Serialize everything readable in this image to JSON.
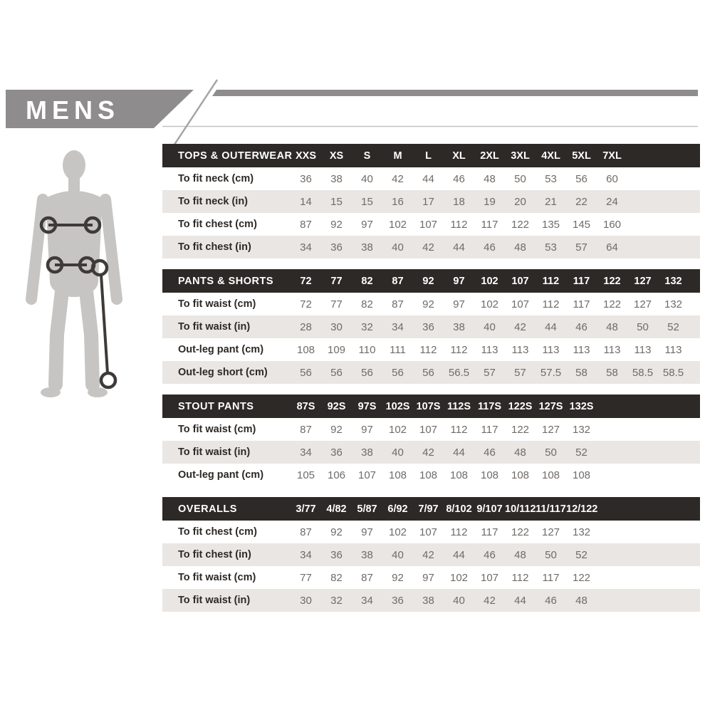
{
  "banner": {
    "label": "MENS",
    "band_color": "#8e8c8c",
    "text_color": "#ffffff"
  },
  "figure": {
    "description": "male body silhouette",
    "silhouette_color": "#c7c5c3",
    "marker_color": "#3e3a37",
    "markers": [
      "chest-measure",
      "waist-measure",
      "out-leg-measure"
    ]
  },
  "colors": {
    "table_header_bg": "#2d2926",
    "table_header_text": "#ffffff",
    "row_stripe": "#e9e6e3",
    "row_label_text": "#2d2926",
    "row_value_text": "#6f6b68"
  },
  "tables": [
    {
      "id": "tops-outerwear",
      "header": "TOPS & OUTERWEAR",
      "columns": [
        "XXS",
        "XS",
        "S",
        "M",
        "L",
        "XL",
        "2XL",
        "3XL",
        "4XL",
        "5XL",
        "7XL"
      ],
      "rows": [
        {
          "label": "To fit neck (cm)",
          "values": [
            "36",
            "38",
            "40",
            "42",
            "44",
            "46",
            "48",
            "50",
            "53",
            "56",
            "60"
          ]
        },
        {
          "label": "To fit neck (in)",
          "values": [
            "14",
            "15",
            "15",
            "16",
            "17",
            "18",
            "19",
            "20",
            "21",
            "22",
            "24"
          ]
        },
        {
          "label": "To fit chest (cm)",
          "values": [
            "87",
            "92",
            "97",
            "102",
            "107",
            "112",
            "117",
            "122",
            "135",
            "145",
            "160"
          ]
        },
        {
          "label": "To fit chest (in)",
          "values": [
            "34",
            "36",
            "38",
            "40",
            "42",
            "44",
            "46",
            "48",
            "53",
            "57",
            "64"
          ]
        }
      ]
    },
    {
      "id": "pants-shorts",
      "header": "PANTS & SHORTS",
      "columns": [
        "72",
        "77",
        "82",
        "87",
        "92",
        "97",
        "102",
        "107",
        "112",
        "117",
        "122",
        "127",
        "132"
      ],
      "rows": [
        {
          "label": "To fit waist (cm)",
          "values": [
            "72",
            "77",
            "82",
            "87",
            "92",
            "97",
            "102",
            "107",
            "112",
            "117",
            "122",
            "127",
            "132"
          ]
        },
        {
          "label": "To fit waist (in)",
          "values": [
            "28",
            "30",
            "32",
            "34",
            "36",
            "38",
            "40",
            "42",
            "44",
            "46",
            "48",
            "50",
            "52"
          ]
        },
        {
          "label": "Out-leg pant (cm)",
          "values": [
            "108",
            "109",
            "110",
            "111",
            "112",
            "112",
            "113",
            "113",
            "113",
            "113",
            "113",
            "113",
            "113"
          ]
        },
        {
          "label": "Out-leg short (cm)",
          "values": [
            "56",
            "56",
            "56",
            "56",
            "56",
            "56.5",
            "57",
            "57",
            "57.5",
            "58",
            "58",
            "58.5",
            "58.5"
          ]
        }
      ]
    },
    {
      "id": "stout-pants",
      "header": "STOUT PANTS",
      "columns": [
        "87S",
        "92S",
        "97S",
        "102S",
        "107S",
        "112S",
        "117S",
        "122S",
        "127S",
        "132S"
      ],
      "rows": [
        {
          "label": "To fit waist (cm)",
          "values": [
            "87",
            "92",
            "97",
            "102",
            "107",
            "112",
            "117",
            "122",
            "127",
            "132"
          ]
        },
        {
          "label": "To fit waist (in)",
          "values": [
            "34",
            "36",
            "38",
            "40",
            "42",
            "44",
            "46",
            "48",
            "50",
            "52"
          ]
        },
        {
          "label": "Out-leg pant (cm)",
          "values": [
            "105",
            "106",
            "107",
            "108",
            "108",
            "108",
            "108",
            "108",
            "108",
            "108"
          ]
        }
      ]
    },
    {
      "id": "overalls",
      "header": "OVERALLS",
      "columns": [
        "3/77",
        "4/82",
        "5/87",
        "6/92",
        "7/97",
        "8/102",
        "9/107",
        "10/112",
        "11/117",
        "12/122"
      ],
      "rows": [
        {
          "label": "To fit chest (cm)",
          "values": [
            "87",
            "92",
            "97",
            "102",
            "107",
            "112",
            "117",
            "122",
            "127",
            "132"
          ]
        },
        {
          "label": "To fit chest (in)",
          "values": [
            "34",
            "36",
            "38",
            "40",
            "42",
            "44",
            "46",
            "48",
            "50",
            "52"
          ]
        },
        {
          "label": "To fit waist (cm)",
          "values": [
            "77",
            "82",
            "87",
            "92",
            "97",
            "102",
            "107",
            "112",
            "117",
            "122"
          ]
        },
        {
          "label": "To fit waist (in)",
          "values": [
            "30",
            "32",
            "34",
            "36",
            "38",
            "40",
            "42",
            "44",
            "46",
            "48"
          ]
        }
      ]
    }
  ]
}
